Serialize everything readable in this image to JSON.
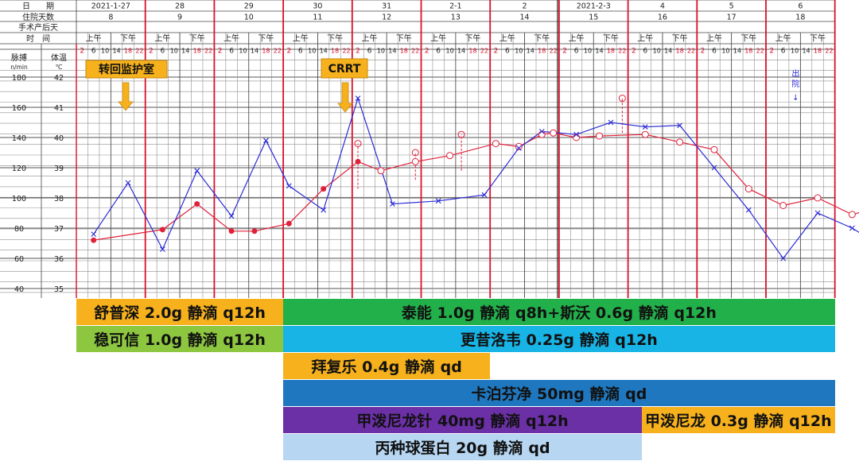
{
  "colors": {
    "grid": "#8f8f8f",
    "day_line": "#d9112b",
    "pulse": "#2b2bd6",
    "temp": "#e0213a",
    "orange": "#f6b11c",
    "green_dark": "#22b04b",
    "green_light": "#8dc63f",
    "cyan": "#18b4e6",
    "blue_mid": "#1f78bf",
    "purple": "#6b2fa6",
    "light_blue": "#b7d6f2"
  },
  "header": {
    "row_labels": [
      "日　　期",
      "住院天数",
      "手术产后天",
      "时　间"
    ],
    "axis_label_pulse": "脉搏\nn/min",
    "axis_label_temp": "体温\n℃",
    "morning": "上午",
    "afternoon": "下午",
    "time_slots": [
      "2",
      "6",
      "10",
      "14",
      "18",
      "22"
    ],
    "days": [
      {
        "date": "2021-1-27",
        "hosp_day": "8"
      },
      {
        "date": "28",
        "hosp_day": "9"
      },
      {
        "date": "29",
        "hosp_day": "10"
      },
      {
        "date": "30",
        "hosp_day": "11"
      },
      {
        "date": "31",
        "hosp_day": "12"
      },
      {
        "date": "2-1",
        "hosp_day": "13"
      },
      {
        "date": "2",
        "hosp_day": "14"
      },
      {
        "date": "2021-2-3",
        "hosp_day": "15"
      },
      {
        "date": "4",
        "hosp_day": "16"
      },
      {
        "date": "5",
        "hosp_day": "17"
      },
      {
        "date": "6",
        "hosp_day": "18"
      }
    ]
  },
  "annotations": {
    "transfer": "转回监护室",
    "crrt": "CRRT",
    "vertical_note": "出院"
  },
  "chart_data": {
    "type": "line",
    "pulse_axis": {
      "ticks": [
        180,
        160,
        140,
        120,
        100,
        80,
        60,
        40
      ]
    },
    "temp_axis": {
      "ticks": [
        42,
        41,
        40,
        39,
        38,
        37,
        36,
        35
      ]
    },
    "series": [
      {
        "key": "pulse",
        "values": [
          {
            "t": 1,
            "v": 76
          },
          {
            "t": 4,
            "v": 110
          },
          {
            "t": 7,
            "v": 66
          },
          {
            "t": 10,
            "v": 118
          },
          {
            "t": 13,
            "v": 88
          },
          {
            "t": 16,
            "v": 138
          },
          {
            "t": 18,
            "v": 108
          },
          {
            "t": 21,
            "v": 92
          },
          {
            "t": 24,
            "v": 166
          },
          {
            "t": 27,
            "v": 96
          },
          {
            "t": 31,
            "v": 98
          },
          {
            "t": 35,
            "v": 102
          },
          {
            "t": 38,
            "v": 133
          },
          {
            "t": 40,
            "v": 144
          },
          {
            "t": 43,
            "v": 142
          },
          {
            "t": 46,
            "v": 150
          },
          {
            "t": 49,
            "v": 147
          },
          {
            "t": 52,
            "v": 148
          },
          {
            "t": 55,
            "v": 120
          },
          {
            "t": 58,
            "v": 92
          },
          {
            "t": 61,
            "v": 60
          },
          {
            "t": 64,
            "v": 90
          },
          {
            "t": 67,
            "v": 80
          },
          {
            "t": 70,
            "v": 66
          },
          {
            "t": 73,
            "v": 80
          },
          {
            "t": 77,
            "v": 72
          },
          {
            "t": 80,
            "v": 72
          },
          {
            "t": 84,
            "v": 76
          },
          {
            "t": 88,
            "v": 80
          },
          {
            "t": 91,
            "v": 68
          },
          {
            "t": 94,
            "v": 72
          },
          {
            "t": 97,
            "v": 72
          },
          {
            "t": 101,
            "v": 72
          },
          {
            "t": 107,
            "v": 64
          },
          {
            "t": 110,
            "v": 62
          },
          {
            "t": 112,
            "v": 72
          },
          {
            "t": 115,
            "v": 66
          },
          {
            "t": 118,
            "v": 64
          },
          {
            "t": 128,
            "v": 65
          },
          {
            "t": 140,
            "v": 62
          },
          {
            "t": 153,
            "v": 76
          }
        ]
      },
      {
        "key": "temp",
        "values": [
          {
            "t": 1,
            "v": 36.6
          },
          {
            "t": 7,
            "v": 36.95
          },
          {
            "t": 10,
            "v": 37.8
          },
          {
            "t": 13,
            "v": 36.9
          },
          {
            "t": 15,
            "v": 36.9
          },
          {
            "t": 18,
            "v": 37.15
          },
          {
            "t": 21,
            "v": 38.3
          },
          {
            "t": 24,
            "v": 39.2
          },
          {
            "t": 26,
            "v": 38.9
          },
          {
            "t": 29,
            "v": 39.2
          },
          {
            "t": 32,
            "v": 39.4
          },
          {
            "t": 36,
            "v": 39.8
          },
          {
            "t": 38,
            "v": 39.7
          },
          {
            "t": 40,
            "v": 40.1
          },
          {
            "t": 41,
            "v": 40.15
          },
          {
            "t": 43,
            "v": 40.0
          },
          {
            "t": 45,
            "v": 40.05
          },
          {
            "t": 49,
            "v": 40.1
          },
          {
            "t": 52,
            "v": 39.85
          },
          {
            "t": 55,
            "v": 39.6
          },
          {
            "t": 58,
            "v": 38.3
          },
          {
            "t": 61,
            "v": 37.75
          },
          {
            "t": 64,
            "v": 38.0
          },
          {
            "t": 67,
            "v": 37.45
          },
          {
            "t": 70,
            "v": 37.75
          },
          {
            "t": 73,
            "v": 37.45
          },
          {
            "t": 75,
            "v": 37.3
          },
          {
            "t": 78,
            "v": 37.0
          },
          {
            "t": 82,
            "v": 37.6
          },
          {
            "t": 84,
            "v": 36.9
          },
          {
            "t": 86,
            "v": 36.6
          },
          {
            "t": 89,
            "v": 36.15
          },
          {
            "t": 92,
            "v": 35.9
          },
          {
            "t": 95,
            "v": 36.3
          },
          {
            "t": 98,
            "v": 36.65
          },
          {
            "t": 104,
            "v": 36.6
          },
          {
            "t": 109,
            "v": 35.65
          },
          {
            "t": 112,
            "v": 35.5
          },
          {
            "t": 116,
            "v": 35.75
          },
          {
            "t": 120,
            "v": 35.6
          },
          {
            "t": 131,
            "v": 35.6
          },
          {
            "t": 140,
            "v": 35.6
          },
          {
            "t": 152,
            "v": 36.6
          }
        ]
      },
      {
        "key": "temp_spikes",
        "values": [
          {
            "t": 24,
            "from": 38.3,
            "to": 39.8
          },
          {
            "t": 29,
            "from": 38.6,
            "to": 39.5
          },
          {
            "t": 33,
            "from": 38.9,
            "to": 40.1
          },
          {
            "t": 47,
            "from": 40.15,
            "to": 41.3
          }
        ]
      }
    ]
  },
  "medications": [
    {
      "label": "舒普深 2.0g 静滴 q12h",
      "start": 0,
      "end": 3,
      "row": 0,
      "color": "orange"
    },
    {
      "label": "泰能  1.0g 静滴 q8h+斯沃  0.6g 静滴 q12h",
      "start": 3,
      "end": 11,
      "row": 0,
      "color": "green_dark"
    },
    {
      "label": "稳可信 1.0g 静滴 q12h",
      "start": 0,
      "end": 3,
      "row": 1,
      "color": "green_light"
    },
    {
      "label": "更昔洛韦  0.25g 静滴 q12h",
      "start": 3,
      "end": 11,
      "row": 1,
      "color": "cyan"
    },
    {
      "label": "拜复乐  0.4g 静滴 qd",
      "start": 3,
      "end": 6,
      "row": 2,
      "color": "orange"
    },
    {
      "label": "卡泊芬净  50mg 静滴 qd",
      "start": 3,
      "end": 11,
      "row": 3,
      "color": "blue_mid"
    },
    {
      "label": "甲泼尼龙针 40mg  静滴 q12h",
      "start": 3,
      "end": 8.2,
      "row": 4,
      "color": "purple"
    },
    {
      "label": "甲泼尼龙  0.3g 静滴 q12h",
      "start": 8.2,
      "end": 11,
      "row": 4,
      "color": "orange"
    },
    {
      "label": "丙种球蛋白 20g  静滴 qd",
      "start": 3,
      "end": 8.2,
      "row": 5,
      "color": "light_blue"
    }
  ]
}
